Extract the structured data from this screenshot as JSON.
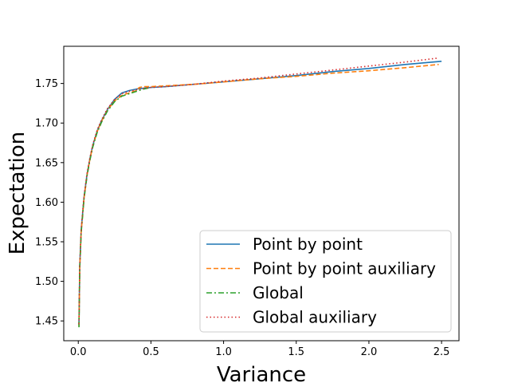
{
  "chart_data": {
    "type": "line",
    "title": "",
    "xlabel": "Variance",
    "ylabel": "Expectation",
    "xlim": [
      -0.1,
      2.62
    ],
    "ylim": [
      1.425,
      1.797
    ],
    "xticks": [
      {
        "value": 0.0,
        "label": "0.0"
      },
      {
        "value": 0.5,
        "label": "0.5"
      },
      {
        "value": 1.0,
        "label": "1.0"
      },
      {
        "value": 1.5,
        "label": "1.5"
      },
      {
        "value": 2.0,
        "label": "2.0"
      },
      {
        "value": 2.5,
        "label": "2.5"
      }
    ],
    "yticks": [
      {
        "value": 1.45,
        "label": "1.45"
      },
      {
        "value": 1.5,
        "label": "1.50"
      },
      {
        "value": 1.55,
        "label": "1.55"
      },
      {
        "value": 1.6,
        "label": "1.60"
      },
      {
        "value": 1.65,
        "label": "1.65"
      },
      {
        "value": 1.7,
        "label": "1.70"
      },
      {
        "value": 1.75,
        "label": "1.75"
      }
    ],
    "grid": false,
    "legend_position": "lower-right",
    "series": [
      {
        "name": "Point by point",
        "color": "#1f77b4",
        "dash": "solid",
        "x": [
          0.005,
          0.01,
          0.02,
          0.04,
          0.06,
          0.08,
          0.1,
          0.13,
          0.16,
          0.2,
          0.25,
          0.3,
          0.35,
          0.4,
          0.45,
          0.5,
          0.6,
          0.8,
          1.0,
          1.25,
          1.5,
          1.75,
          2.0,
          2.25,
          2.5
        ],
        "y": [
          1.445,
          1.52,
          1.565,
          1.607,
          1.635,
          1.655,
          1.672,
          1.69,
          1.703,
          1.717,
          1.73,
          1.738,
          1.741,
          1.743,
          1.744,
          1.745,
          1.746,
          1.749,
          1.752,
          1.756,
          1.76,
          1.765,
          1.769,
          1.774,
          1.778
        ]
      },
      {
        "name": "Point by point auxiliary",
        "color": "#ff7f0e",
        "dash": "dashed",
        "x": [
          0.005,
          0.01,
          0.02,
          0.04,
          0.06,
          0.08,
          0.1,
          0.13,
          0.16,
          0.2,
          0.25,
          0.3,
          0.35,
          0.4,
          0.42,
          0.45,
          0.5,
          0.6,
          0.8,
          1.0,
          1.25,
          1.5,
          1.75,
          2.0,
          2.25,
          2.48
        ],
        "y": [
          1.443,
          1.518,
          1.563,
          1.605,
          1.634,
          1.654,
          1.671,
          1.689,
          1.702,
          1.716,
          1.728,
          1.735,
          1.738,
          1.741,
          1.745,
          1.746,
          1.746,
          1.747,
          1.749,
          1.752,
          1.756,
          1.759,
          1.763,
          1.766,
          1.77,
          1.774
        ]
      },
      {
        "name": "Global",
        "color": "#2ca02c",
        "dash": "dashdot",
        "x": [
          0.005,
          0.01,
          0.02,
          0.04,
          0.06,
          0.08,
          0.1,
          0.13,
          0.16,
          0.2,
          0.25,
          0.3,
          0.35,
          0.4,
          0.45,
          0.5
        ],
        "y": [
          1.442,
          1.517,
          1.562,
          1.605,
          1.633,
          1.653,
          1.67,
          1.688,
          1.701,
          1.715,
          1.727,
          1.734,
          1.737,
          1.74,
          1.743,
          1.745
        ]
      },
      {
        "name": "Global auxiliary",
        "color": "#d62728",
        "dash": "dotted",
        "x": [
          0.005,
          0.01,
          0.02,
          0.04,
          0.06,
          0.08,
          0.1,
          0.13,
          0.16,
          0.2,
          0.25,
          0.3,
          0.35,
          0.4,
          0.45,
          0.5,
          0.6,
          0.8,
          1.0,
          1.25,
          1.5,
          1.75,
          2.0,
          2.25,
          2.47
        ],
        "y": [
          1.446,
          1.52,
          1.566,
          1.608,
          1.636,
          1.656,
          1.673,
          1.691,
          1.704,
          1.718,
          1.73,
          1.737,
          1.74,
          1.742,
          1.744,
          1.745,
          1.746,
          1.749,
          1.753,
          1.757,
          1.762,
          1.767,
          1.772,
          1.777,
          1.782
        ]
      }
    ]
  }
}
